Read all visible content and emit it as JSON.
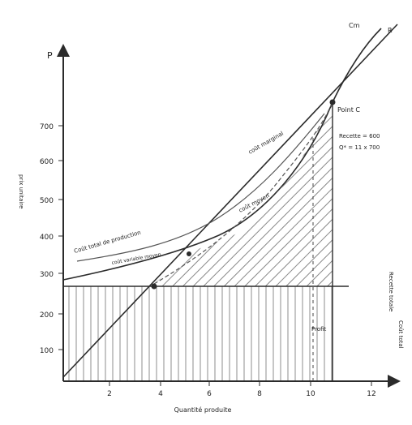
{
  "colors": {
    "ink": "#2b2b2b",
    "hatch": "#6f6f6f",
    "faint": "#9a9a9a",
    "background": "#ffffff"
  },
  "diagram": {
    "y_axis_symbol": "P",
    "y_axis_title": "prix unitaire",
    "y_ticks": [
      "100",
      "200",
      "300",
      "400",
      "500",
      "600",
      "700"
    ],
    "x_ticks": [
      "2",
      "4",
      "6",
      "8",
      "10",
      "12"
    ],
    "x_axis_title": "Quantité produite",
    "labels": {
      "top_right_1": "Cm",
      "top_right_2": "R",
      "critical_point": "Point C",
      "right_note_1": "Recette = 600",
      "right_note_2": "Q* = 11 x 700",
      "marginal_cost": "coût marginal",
      "average_cost": "coût moyen",
      "average_var_cost": "coût variable moyen",
      "total_cost_curve": "Coût total de production",
      "profit_zone": "Profit",
      "right_vertical_1": "Recette totale",
      "right_vertical_2": "Coût total"
    }
  }
}
